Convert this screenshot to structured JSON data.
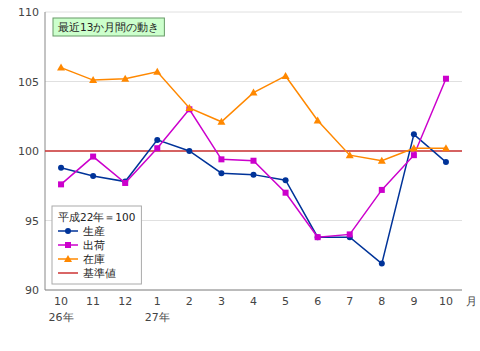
{
  "chart_data": {
    "type": "line",
    "categories": [
      "10",
      "11",
      "12",
      "1",
      "2",
      "3",
      "4",
      "5",
      "6",
      "7",
      "8",
      "9",
      "10"
    ],
    "series": [
      {
        "name": "生産",
        "color": "#003399",
        "marker": "circle",
        "values": [
          98.8,
          98.2,
          97.8,
          100.8,
          100.0,
          98.4,
          98.3,
          97.9,
          93.8,
          93.8,
          91.9,
          101.2,
          99.2
        ]
      },
      {
        "name": "出荷",
        "color": "#cc00cc",
        "marker": "square",
        "values": [
          97.6,
          99.6,
          97.7,
          100.2,
          103.0,
          99.4,
          99.3,
          97.0,
          93.8,
          94.0,
          97.2,
          99.7,
          105.2
        ]
      },
      {
        "name": "在庫",
        "color": "#ff8800",
        "marker": "triangle",
        "values": [
          106.0,
          105.1,
          105.2,
          105.7,
          103.1,
          102.1,
          104.2,
          105.4,
          102.2,
          99.7,
          99.3,
          100.2,
          100.2
        ]
      }
    ],
    "reference_lines": [
      {
        "name": "基準値",
        "value": 100.0,
        "color": "#cc3333"
      }
    ],
    "ylim": [
      90,
      110
    ],
    "yticks": [
      90,
      95,
      100,
      105,
      110
    ],
    "grid": true,
    "legend": "lower left",
    "legend_title": "平成22年＝100",
    "annotation": "最近13か月間の動き",
    "year_labels": [
      {
        "category_index": 0,
        "text": "26年"
      },
      {
        "category_index": 3,
        "text": "27年"
      }
    ],
    "x_unit": "月"
  }
}
